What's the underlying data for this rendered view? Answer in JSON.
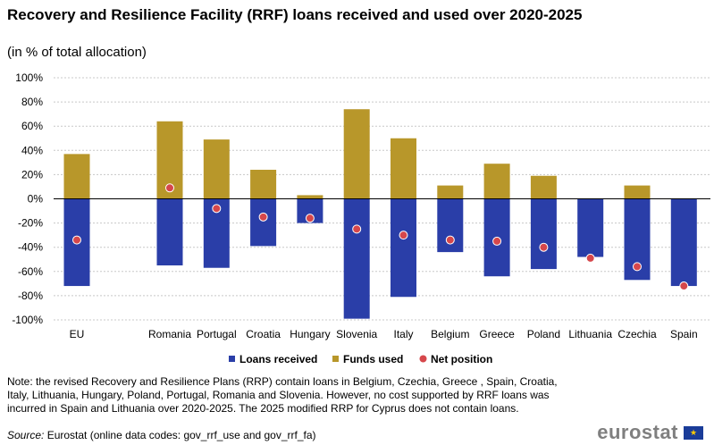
{
  "header": {
    "title": "Recovery and Resilience Facility (RRF) loans received and used over 2020-2025",
    "subtitle": "(in % of total allocation)"
  },
  "footer": {
    "note": "Note: the revised Recovery and Resilience Plans (RRP) contain loans in Belgium, Czechia, Greece , Spain, Croatia, Italy, Lithuania, Hungary, Poland, Portugal, Romania and Slovenia. However, no cost supported by RRF loans was incurred in Spain and Lithuania over 2020-2025. The 2025 modified RRP for Cyprus does not contain loans.",
    "source_label": "Source:",
    "source_text": " Eurostat (online data codes: gov_rrf_use and gov_rrf_fa)",
    "logo": "eurostat",
    "flag_icon": "eu-flag-icon"
  },
  "colors": {
    "loans_received": "#2a3ea8",
    "funds_used": "#b8972a",
    "net_position": "#d6474b",
    "grid": "#c8c8c8"
  },
  "chart_data": {
    "type": "bar",
    "categories": [
      "EU",
      "Romania",
      "Portugal",
      "Croatia",
      "Hungary",
      "Slovenia",
      "Italy",
      "Belgium",
      "Greece",
      "Poland",
      "Lithuania",
      "Czechia",
      "Spain"
    ],
    "gap_after_index": 0,
    "series": [
      {
        "name": "Loans received",
        "kind": "bar",
        "values": [
          -72,
          -55,
          -57,
          -39,
          -20,
          -99,
          -81,
          -44,
          -64,
          -58,
          -48,
          -67,
          -72
        ]
      },
      {
        "name": "Funds used",
        "kind": "bar",
        "values": [
          37,
          64,
          49,
          24,
          3,
          74,
          50,
          11,
          29,
          19,
          0,
          11,
          0
        ]
      },
      {
        "name": "Net position",
        "kind": "marker",
        "values": [
          -34,
          9,
          -8,
          -15,
          -16,
          -25,
          -30,
          -34,
          -35,
          -40,
          -49,
          -56,
          -72
        ]
      }
    ],
    "yticks": [
      "100%",
      "80%",
      "60%",
      "40%",
      "20%",
      "0%",
      "-20%",
      "-40%",
      "-60%",
      "-80%",
      "-100%"
    ],
    "ylim": [
      -100,
      100
    ],
    "grid": true,
    "legend_position": "bottom"
  }
}
